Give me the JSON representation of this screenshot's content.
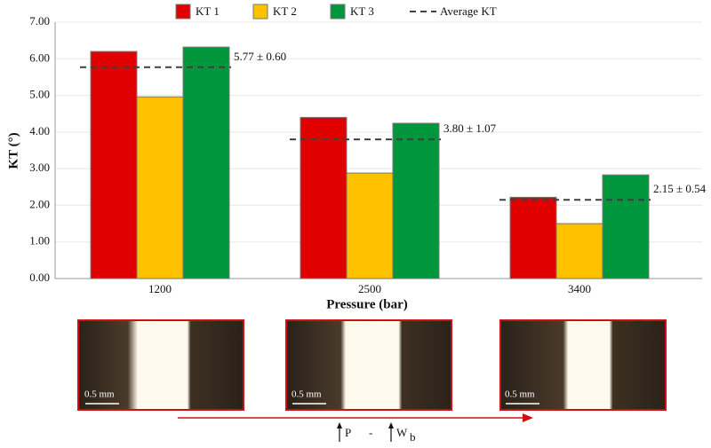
{
  "chart_data": {
    "type": "bar",
    "y_label": "KT (°)",
    "x_label": "Pressure (bar)",
    "categories": [
      "1200",
      "2500",
      "3400"
    ],
    "series": [
      {
        "name": "KT 1",
        "color": "#e00000",
        "values": [
          6.2,
          4.4,
          2.22
        ]
      },
      {
        "name": "KT 2",
        "color": "#ffc000",
        "values": [
          4.96,
          2.88,
          1.5
        ]
      },
      {
        "name": "KT 3",
        "color": "#00963c",
        "values": [
          6.32,
          4.24,
          2.83
        ]
      }
    ],
    "average": {
      "name": "Average KT",
      "color": "#404040",
      "values": [
        5.77,
        3.8,
        2.15
      ],
      "value_labels": [
        "5.77 ± 0.60",
        "3.80 ± 1.07",
        "2.15 ± 0.54"
      ]
    },
    "ylim": [
      0,
      7
    ],
    "yticks": [
      {
        "value": 0,
        "label": "0.00"
      },
      {
        "value": 1,
        "label": "1.00"
      },
      {
        "value": 2,
        "label": "2.00"
      },
      {
        "value": 3,
        "label": "3.00"
      },
      {
        "value": 4,
        "label": "4.00"
      },
      {
        "value": 5,
        "label": "5.00"
      },
      {
        "value": 6,
        "label": "6.00"
      },
      {
        "value": 7,
        "label": "7.00"
      }
    ],
    "grid": true,
    "legend": "top"
  },
  "images": [
    {
      "scale_label": "0.5 mm"
    },
    {
      "scale_label": "0.5 mm"
    },
    {
      "scale_label": "0.5 mm"
    }
  ],
  "arrow_labels": {
    "p": "P",
    "dash": "-",
    "w": "W",
    "sub": "b"
  }
}
